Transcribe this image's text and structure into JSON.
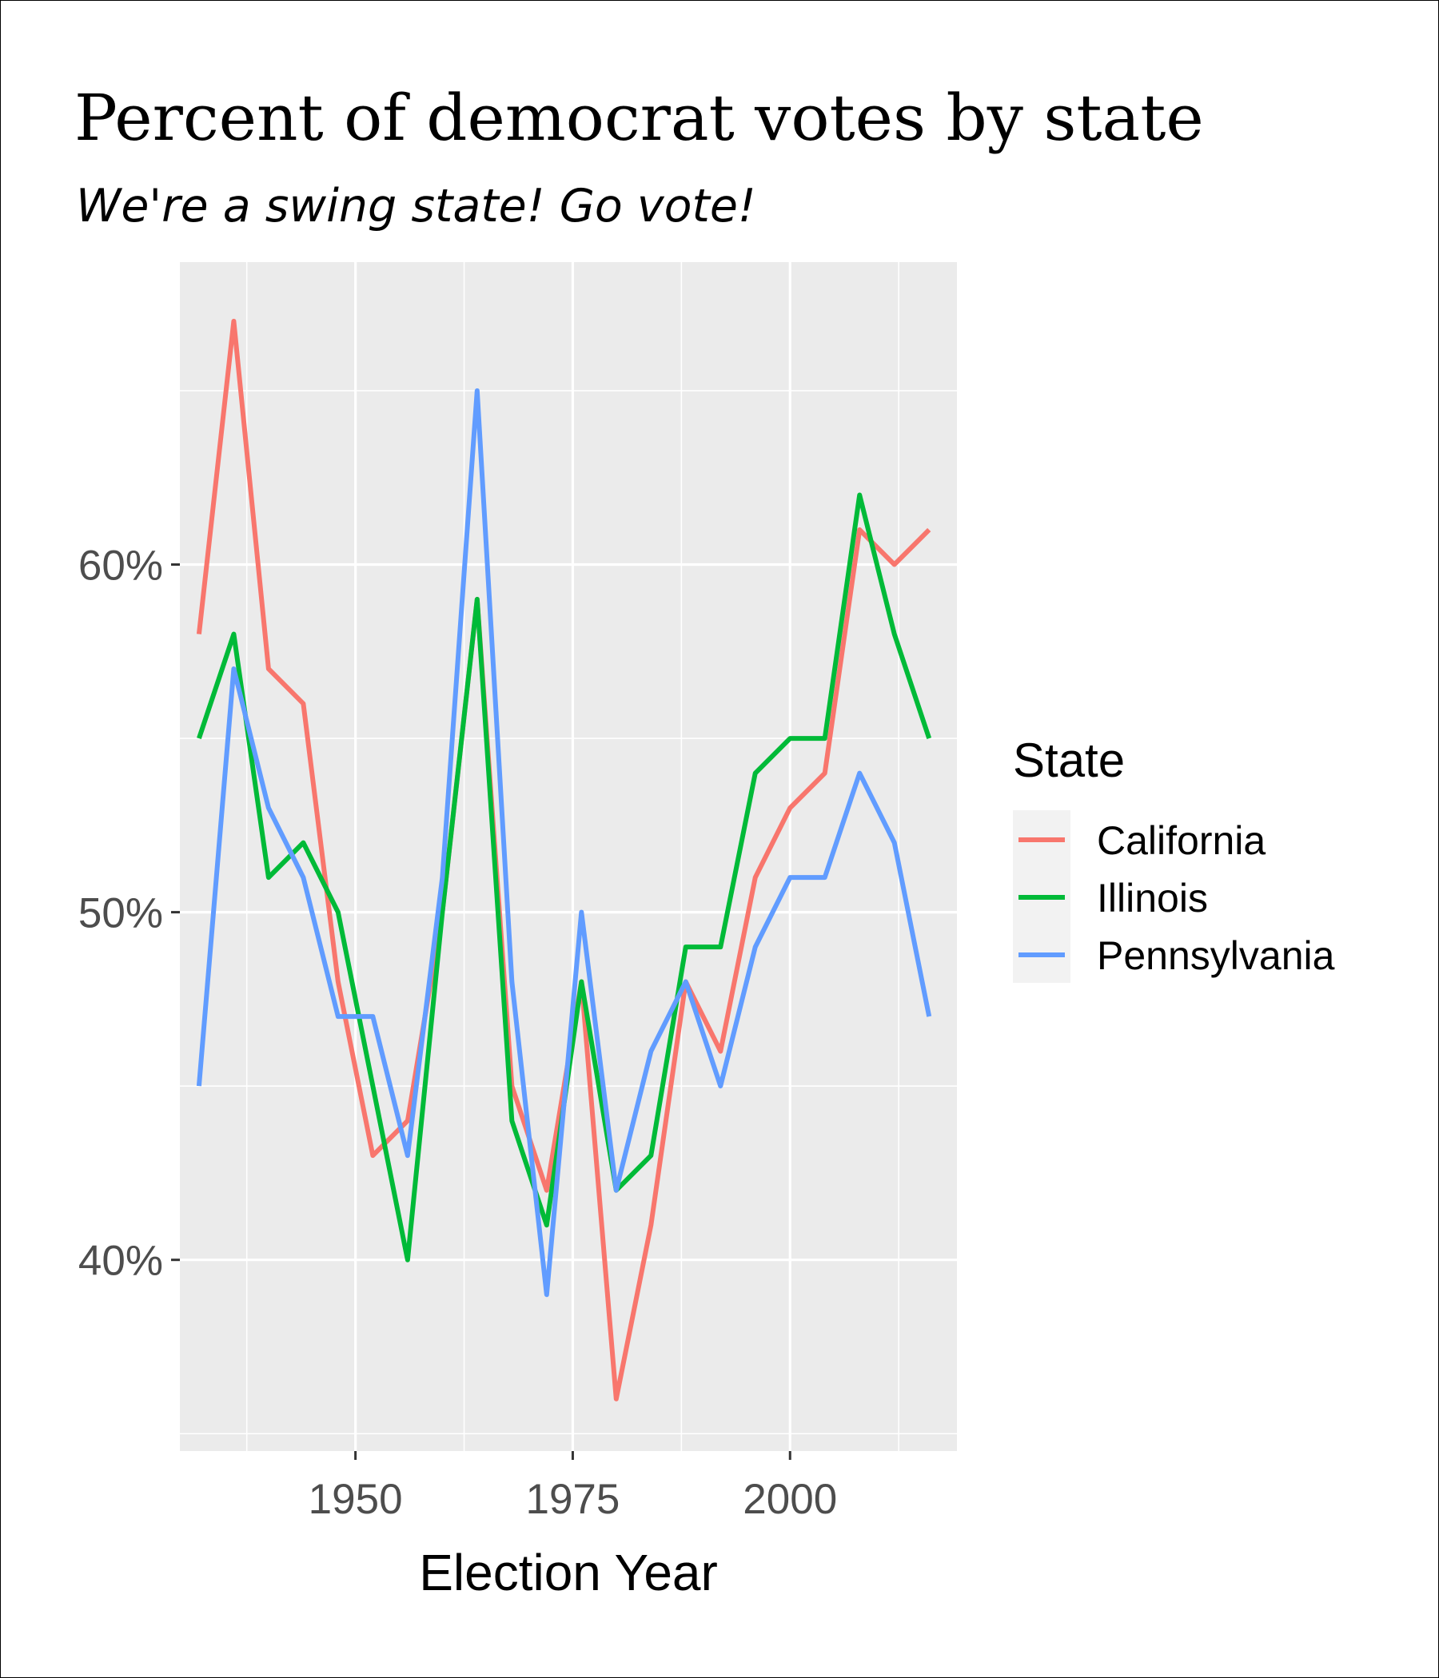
{
  "chart_data": {
    "type": "line",
    "title": "Percent of democrat votes by state",
    "subtitle": "We're a swing state! Go vote!",
    "xlabel": "Election Year",
    "ylabel": "",
    "xlim": [
      1929.8,
      2019.2
    ],
    "ylim": [
      0.345,
      0.687
    ],
    "x_ticks": [
      1950,
      1975,
      2000
    ],
    "x_tick_labels": [
      "1950",
      "1975",
      "2000"
    ],
    "y_ticks": [
      0.4,
      0.5,
      0.6
    ],
    "y_tick_labels": [
      "40%",
      "50%",
      "60%"
    ],
    "grid": true,
    "legend": {
      "title": "State",
      "position": "right"
    },
    "x": [
      1932,
      1936,
      1940,
      1944,
      1948,
      1952,
      1956,
      1960,
      1964,
      1968,
      1972,
      1976,
      1980,
      1984,
      1988,
      1992,
      1996,
      2000,
      2004,
      2008,
      2012,
      2016
    ],
    "series": [
      {
        "name": "California",
        "color": "#F8766D",
        "values": [
          0.58,
          0.67,
          0.57,
          0.56,
          0.48,
          0.43,
          0.44,
          0.5,
          0.59,
          0.45,
          0.42,
          0.48,
          0.36,
          0.41,
          0.48,
          0.46,
          0.51,
          0.53,
          0.54,
          0.61,
          0.6,
          0.61
        ]
      },
      {
        "name": "Illinois",
        "color": "#00BA38",
        "values": [
          0.55,
          0.58,
          0.51,
          0.52,
          0.5,
          0.45,
          0.4,
          0.5,
          0.59,
          0.44,
          0.41,
          0.48,
          0.42,
          0.43,
          0.49,
          0.49,
          0.54,
          0.55,
          0.55,
          0.62,
          0.58,
          0.55
        ]
      },
      {
        "name": "Pennsylvania",
        "color": "#619CFF",
        "values": [
          0.45,
          0.57,
          0.53,
          0.51,
          0.47,
          0.47,
          0.43,
          0.51,
          0.65,
          0.48,
          0.39,
          0.5,
          0.42,
          0.46,
          0.48,
          0.45,
          0.49,
          0.51,
          0.51,
          0.54,
          0.52,
          0.47
        ]
      }
    ]
  }
}
